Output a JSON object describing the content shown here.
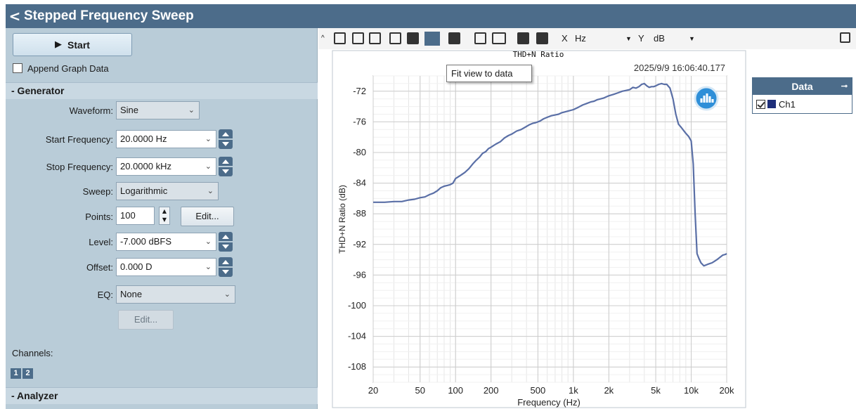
{
  "titlebar": {
    "back_icon": "chevron-left-icon",
    "title": "Stepped Frequency Sweep"
  },
  "controls": {
    "start_label": "Start",
    "append_label": "Append Graph Data",
    "append_checked": false
  },
  "generator": {
    "section_label": "- Generator",
    "waveform_label": "Waveform:",
    "waveform_value": "Sine",
    "start_freq_label": "Start Frequency:",
    "start_freq_value": "20.0000 Hz",
    "stop_freq_label": "Stop Frequency:",
    "stop_freq_value": "20.0000 kHz",
    "sweep_label": "Sweep:",
    "sweep_value": "Logarithmic",
    "points_label": "Points:",
    "points_value": "100",
    "edit_label": "Edit...",
    "level_label": "Level:",
    "level_value": "-7.000 dBFS",
    "offset_label": "Offset:",
    "offset_value": "0.000 D",
    "eq_label": "EQ:",
    "eq_value": "None",
    "eq_edit_label": "Edit...",
    "channels_label": "Channels:",
    "channels": [
      "1",
      "2"
    ]
  },
  "analyzer": {
    "section_label": "- Analyzer"
  },
  "toolbar": {
    "x_label": "X",
    "x_unit": "Hz",
    "y_label": "Y",
    "y_unit": "dB"
  },
  "tooltip": "Fit view to data",
  "legend": {
    "header": "Data",
    "pin": "⊸",
    "items": [
      {
        "name": "Ch1",
        "checked": true,
        "color": "#1e2f7a"
      }
    ]
  },
  "chart_data": {
    "type": "line",
    "title": "THD+N Ratio",
    "timestamp": "2025/9/9 16:06:40.177",
    "xlabel": "Frequency (Hz)",
    "ylabel": "THD+N Ratio (dB)",
    "x_scale": "log",
    "xlim": [
      20,
      20000
    ],
    "ylim": [
      -110,
      -70
    ],
    "xticks": [
      20,
      50,
      100,
      200,
      500,
      1000,
      2000,
      5000,
      10000,
      20000
    ],
    "xtick_labels": [
      "20",
      "50",
      "100",
      "200",
      "500",
      "1k",
      "2k",
      "5k",
      "10k",
      "20k"
    ],
    "yticks": [
      -72,
      -76,
      -80,
      -84,
      -88,
      -92,
      -96,
      -100,
      -104,
      -108
    ],
    "grid": true,
    "line_color": "#5a6fa6",
    "series": [
      {
        "name": "Ch1",
        "x": [
          20,
          25,
          30,
          35,
          40,
          45,
          50,
          55,
          60,
          65,
          70,
          75,
          80,
          85,
          90,
          95,
          100,
          110,
          120,
          130,
          140,
          150,
          160,
          170,
          180,
          190,
          200,
          220,
          240,
          260,
          280,
          300,
          330,
          360,
          390,
          420,
          450,
          480,
          520,
          560,
          600,
          650,
          700,
          750,
          800,
          850,
          900,
          1000,
          1100,
          1200,
          1300,
          1400,
          1500,
          1600,
          1700,
          1800,
          2000,
          2200,
          2400,
          2600,
          2800,
          3000,
          3200,
          3400,
          3600,
          3800,
          4000,
          4200,
          4400,
          4600,
          4800,
          5000,
          5300,
          5600,
          5900,
          6200,
          6600,
          7000,
          7400,
          7800,
          8200,
          8600,
          9000,
          9500,
          10000,
          10400,
          10800,
          11200,
          11600,
          12100,
          12800,
          13800,
          15000,
          16500,
          17500,
          18500,
          19500,
          20000
        ],
        "y": [
          -86.5,
          -86.5,
          -86.4,
          -86.4,
          -86.2,
          -86.1,
          -85.9,
          -85.8,
          -85.5,
          -85.3,
          -85.0,
          -84.6,
          -84.4,
          -84.3,
          -84.2,
          -84.0,
          -83.4,
          -83.0,
          -82.6,
          -82.1,
          -81.5,
          -81.0,
          -80.6,
          -80.1,
          -79.9,
          -79.5,
          -79.3,
          -78.9,
          -78.6,
          -78.1,
          -77.8,
          -77.6,
          -77.2,
          -77.0,
          -76.7,
          -76.4,
          -76.2,
          -76.1,
          -75.9,
          -75.6,
          -75.4,
          -75.2,
          -75.1,
          -75.0,
          -74.8,
          -74.7,
          -74.6,
          -74.4,
          -74.1,
          -73.8,
          -73.6,
          -73.4,
          -73.3,
          -73.1,
          -73.0,
          -72.9,
          -72.6,
          -72.4,
          -72.2,
          -72.0,
          -71.9,
          -71.8,
          -71.5,
          -71.6,
          -71.4,
          -71.1,
          -71.0,
          -71.3,
          -71.5,
          -71.4,
          -71.4,
          -71.3,
          -71.1,
          -71.0,
          -71.1,
          -71.1,
          -71.6,
          -73.0,
          -75.0,
          -76.3,
          -76.7,
          -77.1,
          -77.5,
          -77.9,
          -78.5,
          -81.5,
          -88.0,
          -93.2,
          -93.8,
          -94.4,
          -94.8,
          -94.6,
          -94.4,
          -94.0,
          -93.7,
          -93.4,
          -93.3,
          -93.2
        ]
      }
    ]
  }
}
